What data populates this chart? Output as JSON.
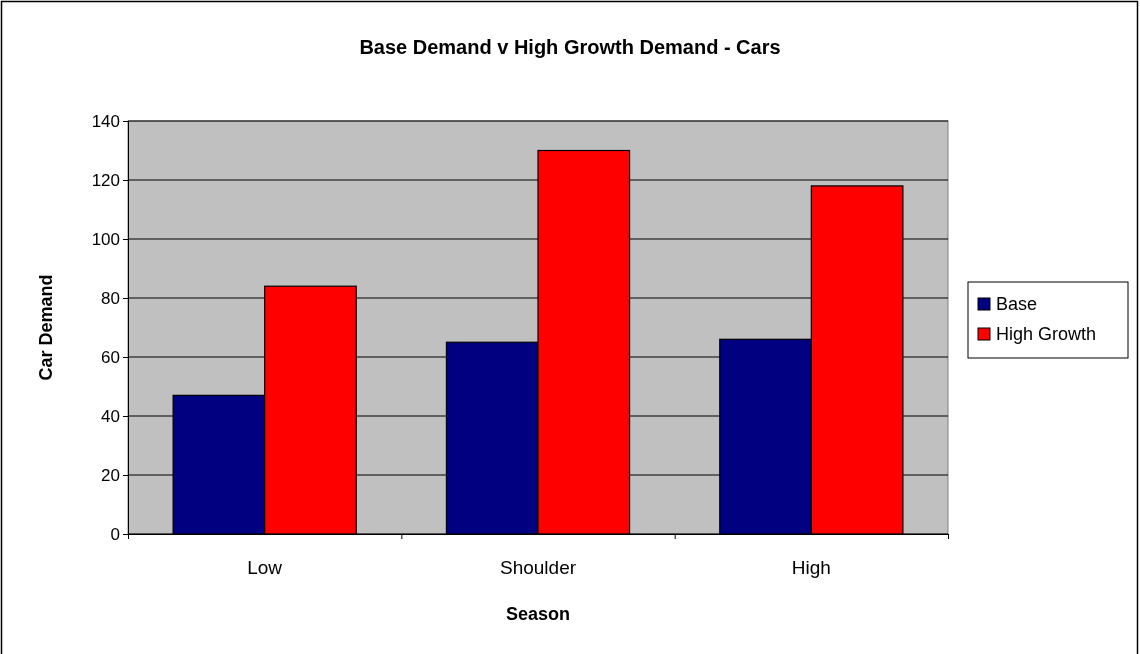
{
  "chart_data": {
    "type": "bar",
    "title": "Base Demand v High Growth Demand - Cars",
    "xlabel": "Season",
    "ylabel": "Car Demand",
    "categories": [
      "Low",
      "Shoulder",
      "High"
    ],
    "series": [
      {
        "name": "Base",
        "color": "#000080",
        "values": [
          47,
          65,
          66
        ]
      },
      {
        "name": "High Growth",
        "color": "#ff0000",
        "values": [
          84,
          130,
          118
        ]
      }
    ],
    "ylim": [
      0,
      140
    ],
    "yticks": [
      0,
      20,
      40,
      60,
      80,
      100,
      120,
      140
    ],
    "grid": "y",
    "legend": "right"
  }
}
